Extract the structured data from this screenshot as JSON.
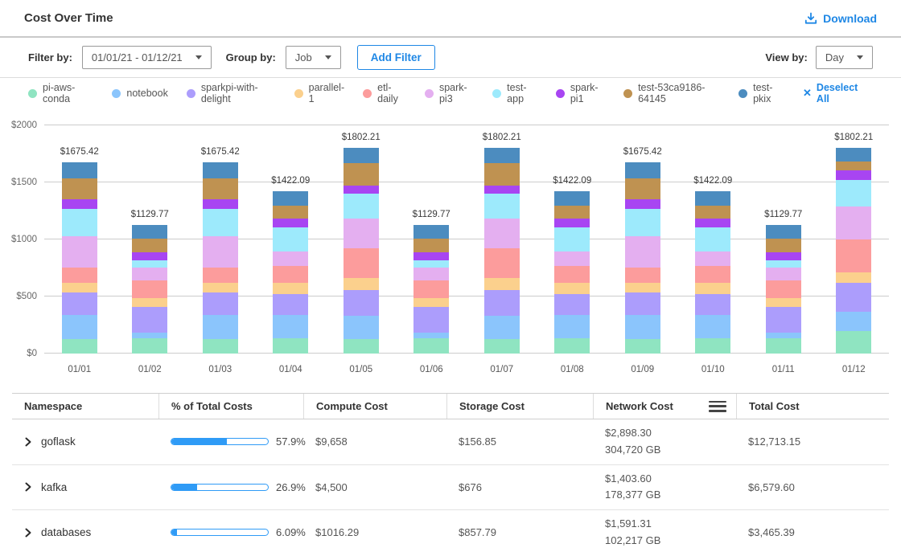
{
  "header": {
    "title": "Cost Over Time",
    "download_label": "Download"
  },
  "filters": {
    "filter_by_label": "Filter by:",
    "date_range_value": "01/01/21 - 01/12/21",
    "group_by_label": "Group by:",
    "group_by_value": "Job",
    "add_filter_label": "Add Filter",
    "view_by_label": "View by:",
    "view_by_value": "Day"
  },
  "legend": {
    "deselect_all_label": "Deselect All",
    "deselect_x": "✕"
  },
  "colors": {
    "accent": "#1E87E5",
    "progress": "#2F9BF6"
  },
  "chart_data": {
    "type": "bar",
    "stacked": true,
    "title": "Cost Over Time",
    "x": [
      "01/01",
      "01/02",
      "01/03",
      "01/04",
      "01/05",
      "01/06",
      "01/07",
      "01/08",
      "01/09",
      "01/10",
      "01/11",
      "01/12"
    ],
    "bar_totals": [
      1675.42,
      1129.77,
      1675.42,
      1422.09,
      1802.21,
      1129.77,
      1802.21,
      1422.09,
      1675.42,
      1422.09,
      1129.77,
      1802.21
    ],
    "bar_total_labels": [
      "$1675.42",
      "$1129.77",
      "$1675.42",
      "$1422.09",
      "$1802.21",
      "$1129.77",
      "$1802.21",
      "$1422.09",
      "$1675.42",
      "$1422.09",
      "$1129.77",
      "$1802.21"
    ],
    "ylim": [
      0,
      2000
    ],
    "ytick_labels": [
      "$0",
      "$500",
      "$1000",
      "$1500",
      "$2000"
    ],
    "grid": "horizontal",
    "legend_position": "top",
    "series": [
      {
        "name": "pi-aws-conda",
        "color": "#8FE4C1",
        "values": [
          130,
          135,
          130,
          133,
          129,
          135,
          129,
          133,
          130,
          133,
          135,
          198
        ]
      },
      {
        "name": "notebook",
        "color": "#8BC5FC",
        "values": [
          210,
          50,
          210,
          206,
          199,
          50,
          199,
          206,
          210,
          206,
          50,
          165
        ]
      },
      {
        "name": "sparkpi-with-delight",
        "color": "#AC9DFC",
        "values": [
          195,
          226,
          195,
          182,
          227,
          226,
          227,
          182,
          195,
          182,
          226,
          254
        ]
      },
      {
        "name": "parallel-1",
        "color": "#FBD08D",
        "values": [
          85,
          76,
          85,
          97,
          107,
          76,
          107,
          97,
          85,
          97,
          76,
          96
        ]
      },
      {
        "name": "etl-daily",
        "color": "#FC9C9C",
        "values": [
          135.42,
          151,
          135.42,
          150,
          262,
          151,
          262,
          150,
          135.42,
          150,
          151,
          289
        ]
      },
      {
        "name": "spark-pi3",
        "color": "#E4AFF0",
        "values": [
          275,
          113,
          275,
          124,
          262,
          113,
          262,
          124,
          275,
          124,
          113,
          286
        ]
      },
      {
        "name": "test-app",
        "color": "#9DEAFC",
        "values": [
          235,
          63,
          235,
          216,
          213,
          63,
          213,
          216,
          235,
          216,
          63,
          233
        ]
      },
      {
        "name": "spark-pi1",
        "color": "#A845F2",
        "values": [
          85,
          76,
          85,
          78,
          75,
          76,
          75,
          78,
          85,
          78,
          76,
          84
        ]
      },
      {
        "name": "test-53ca9186-64145",
        "color": "#BF9251",
        "values": [
          185,
          116,
          185,
          107,
          199,
          116,
          199,
          107,
          185,
          107,
          116,
          76
        ]
      },
      {
        "name": "test-pkix",
        "color": "#4C8CBF",
        "values": [
          140,
          123.77,
          140,
          129.09,
          129.21,
          123.77,
          129.21,
          129.09,
          140,
          129.09,
          123.77,
          121.21
        ]
      }
    ]
  },
  "table": {
    "columns": [
      "Namespace",
      "% of Total Costs",
      "Compute Cost",
      "Storage Cost",
      "Network  Cost",
      "Total Cost"
    ],
    "rows": [
      {
        "namespace": "goflask",
        "percent": 57.9,
        "percent_label": "57.9%",
        "compute": "$9,658",
        "storage": "$156.85",
        "network_cost": "$2,898.30",
        "network_gb": "304,720 GB",
        "total": "$12,713.15"
      },
      {
        "namespace": "kafka",
        "percent": 26.9,
        "percent_label": "26.9%",
        "compute": "$4,500",
        "storage": "$676",
        "network_cost": "$1,403.60",
        "network_gb": "178,377 GB",
        "total": "$6,579.60"
      },
      {
        "namespace": "databases",
        "percent": 6.09,
        "percent_label": "6.09%",
        "compute": "$1016.29",
        "storage": "$857.79",
        "network_cost": "$1,591.31",
        "network_gb": "102,217 GB",
        "total": "$3,465.39"
      }
    ]
  }
}
